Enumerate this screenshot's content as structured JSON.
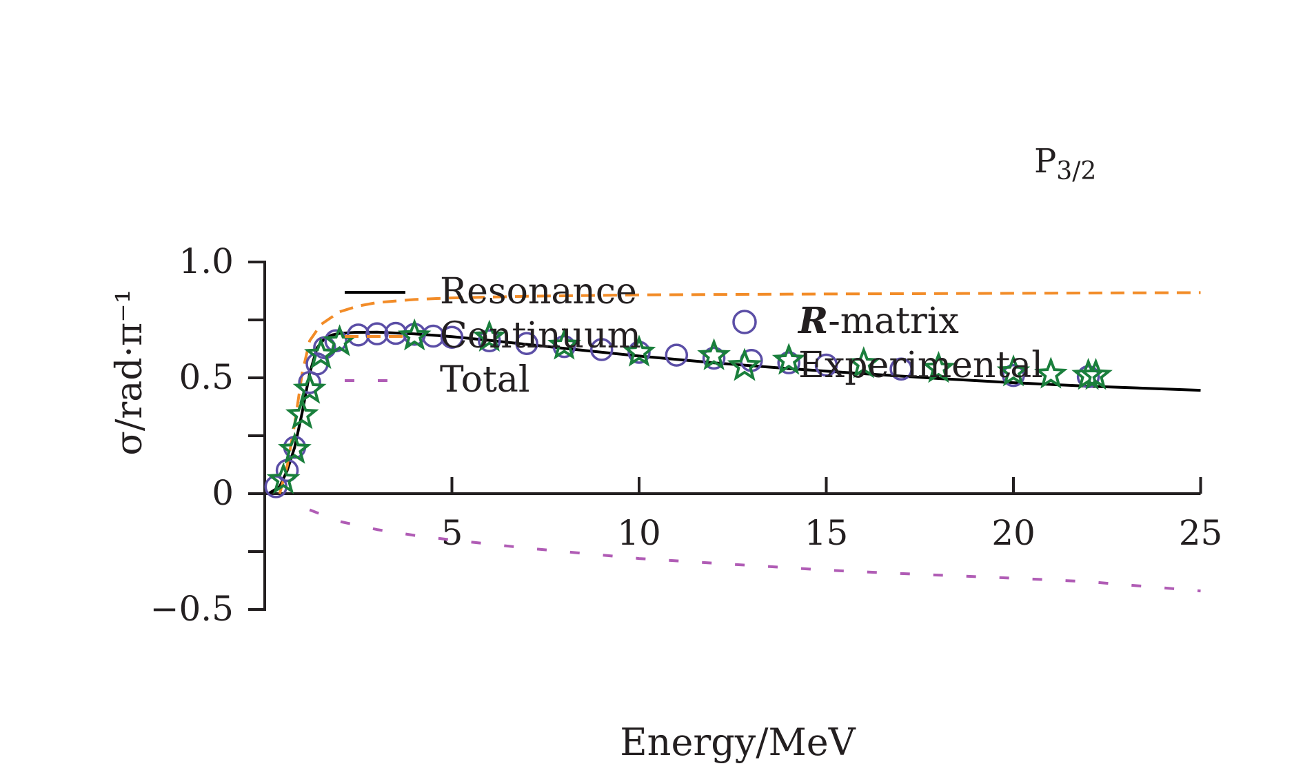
{
  "chart_data": {
    "type": "line",
    "title": "",
    "annotation": {
      "main": "P",
      "sub": "3/2"
    },
    "xlabel": "Energy/MeV",
    "ylabel": "σ/rad·π⁻¹",
    "xlim": [
      0,
      25
    ],
    "ylim": [
      -0.5,
      1.0
    ],
    "x_ticks": [
      {
        "v": 5,
        "label": "5"
      },
      {
        "v": 10,
        "label": "10"
      },
      {
        "v": 15,
        "label": "15"
      },
      {
        "v": 20,
        "label": "20"
      },
      {
        "v": 25,
        "label": "25"
      }
    ],
    "y_ticks": [
      {
        "v": 1.0,
        "label": "1.0"
      },
      {
        "v": 0.75,
        "label": ""
      },
      {
        "v": 0.5,
        "label": "0.5"
      },
      {
        "v": 0.25,
        "label": ""
      },
      {
        "v": 0,
        "label": "0"
      },
      {
        "v": -0.25,
        "label": ""
      },
      {
        "v": -0.5,
        "label": "−0.5"
      }
    ],
    "grid": false,
    "legend": [
      {
        "key": "resonance",
        "label": "Resonance"
      },
      {
        "key": "continuum",
        "label": "Continuum"
      },
      {
        "key": "total",
        "label": "Total"
      },
      {
        "key": "rmatrix",
        "label": "R-matrix"
      },
      {
        "key": "experimental",
        "label": "Experimental"
      }
    ],
    "colors": {
      "resonance": "#000000",
      "continuum": "#f28c28",
      "total": "#b05cb5",
      "rmatrix": "#5b4ea6",
      "experimental": "#1a7f3c",
      "axis": "#231f20"
    },
    "series": [
      {
        "key": "resonance",
        "name": "Resonance",
        "style": "solid",
        "x": [
          0.1,
          0.4,
          0.6,
          0.8,
          1.0,
          1.2,
          1.4,
          1.6,
          1.8,
          2.0,
          2.4,
          3.0,
          4.0,
          5.0,
          6.0,
          8.0,
          10.0,
          12.0,
          14.0,
          16.0,
          18.0,
          20.0,
          22.0,
          25.0
        ],
        "y": [
          0.0,
          0.03,
          0.1,
          0.2,
          0.35,
          0.52,
          0.63,
          0.67,
          0.685,
          0.692,
          0.696,
          0.697,
          0.69,
          0.678,
          0.662,
          0.627,
          0.594,
          0.565,
          0.54,
          0.518,
          0.497,
          0.479,
          0.464,
          0.446
        ]
      },
      {
        "key": "continuum",
        "name": "Continuum",
        "style": "dashed",
        "x": [
          0.4,
          0.6,
          0.8,
          1.0,
          1.2,
          1.5,
          2.0,
          2.5,
          3.0,
          4.0,
          5.0,
          7.0,
          10.0,
          15.0,
          20.0,
          25.0
        ],
        "y": [
          0.0,
          0.12,
          0.3,
          0.52,
          0.66,
          0.73,
          0.785,
          0.81,
          0.825,
          0.838,
          0.845,
          0.852,
          0.858,
          0.862,
          0.865,
          0.868
        ]
      },
      {
        "key": "total",
        "name": "Total",
        "style": "dashed",
        "x": [
          1.2,
          2.0,
          3.0,
          4.0,
          5.0,
          7.0,
          10.0,
          12.0,
          15.0,
          17.0,
          20.0,
          22.0,
          25.0
        ],
        "y": [
          -0.07,
          -0.12,
          -0.155,
          -0.18,
          -0.2,
          -0.235,
          -0.28,
          -0.3,
          -0.33,
          -0.345,
          -0.365,
          -0.38,
          -0.42
        ]
      },
      {
        "key": "rmatrix",
        "name": "R-matrix",
        "style": "marker-circle",
        "x": [
          0.3,
          0.6,
          0.8,
          1.2,
          1.4,
          1.6,
          1.9,
          2.5,
          3.0,
          3.5,
          4.0,
          4.5,
          5.0,
          6.0,
          7.0,
          8.0,
          9.0,
          10.0,
          11.0,
          12.0,
          13.0,
          14.0,
          15.0,
          17.0,
          20.0,
          22.0
        ],
        "y": [
          0.03,
          0.1,
          0.2,
          0.48,
          0.56,
          0.63,
          0.66,
          0.685,
          0.69,
          0.692,
          0.688,
          0.68,
          0.675,
          0.66,
          0.648,
          0.635,
          0.622,
          0.61,
          0.598,
          0.585,
          0.575,
          0.565,
          0.555,
          0.538,
          0.51,
          0.505
        ]
      },
      {
        "key": "experimental",
        "name": "Experimental",
        "style": "marker-star",
        "x": [
          0.5,
          0.8,
          1.0,
          1.2,
          1.5,
          2.0,
          4.0,
          6.0,
          8.0,
          10.0,
          12.0,
          14.0,
          16.0,
          18.0,
          20.0,
          21.0,
          22.0,
          22.2
        ],
        "y": [
          0.06,
          0.19,
          0.34,
          0.45,
          0.6,
          0.655,
          0.68,
          0.675,
          0.64,
          0.61,
          0.595,
          0.575,
          0.56,
          0.54,
          0.525,
          0.515,
          0.51,
          0.51
        ]
      }
    ]
  }
}
